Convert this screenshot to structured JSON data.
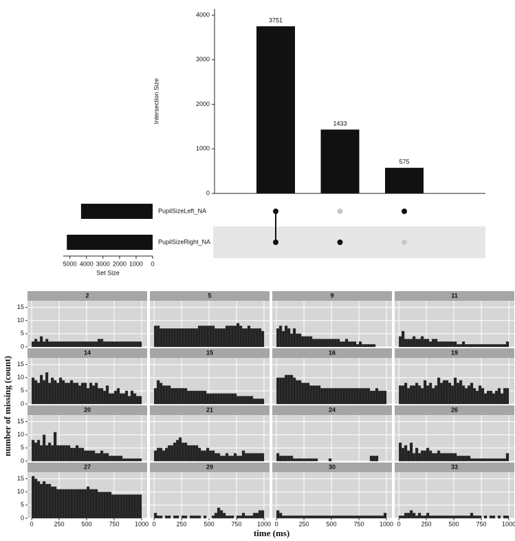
{
  "chart_data": [
    {
      "type": "upset",
      "ylabel": "Intersection Size",
      "values": [
        3751,
        1433,
        575
      ],
      "color": "#111111",
      "ylim": [
        0,
        4140
      ],
      "yticks": [
        0,
        1000,
        2000,
        3000,
        4000
      ],
      "sets": [
        "PupilSizeLeft_NA",
        "PupilSizeRight_NA"
      ],
      "set_sizes": [
        4326,
        5184
      ],
      "set_xlabel": "Set Size",
      "set_xlim": [
        5400,
        0
      ],
      "set_xticks": [
        5000,
        4000,
        3000,
        2000,
        1000,
        0
      ],
      "membership": [
        [
          true,
          true
        ],
        [
          false,
          true
        ],
        [
          true,
          false
        ]
      ]
    },
    {
      "type": "facet_histogram",
      "xlabel": "time (ms)",
      "ylabel": "number of missing (count)",
      "color": "#222222",
      "xlim": [
        -38,
        1050
      ],
      "xticks": [
        0,
        250,
        500,
        750,
        1000
      ],
      "ylim": [
        0,
        17.5
      ],
      "yticks": [
        0,
        5,
        10,
        15
      ],
      "grid": true,
      "bins": [
        0,
        25,
        50,
        75,
        100,
        125,
        150,
        175,
        200,
        225,
        250,
        275,
        300,
        325,
        350,
        375,
        400,
        425,
        450,
        475,
        500,
        525,
        550,
        575,
        600,
        625,
        650,
        675,
        700,
        725,
        750,
        775,
        800,
        825,
        850,
        875,
        900,
        925,
        950,
        975,
        1000
      ],
      "panels": [
        {
          "name": "2",
          "values": [
            2,
            3,
            2,
            4,
            2,
            3,
            2,
            2,
            2,
            2,
            2,
            2,
            2,
            2,
            2,
            2,
            2,
            2,
            2,
            2,
            2,
            2,
            2,
            2,
            3,
            3,
            2,
            2,
            2,
            2,
            2,
            2,
            2,
            2,
            2,
            2,
            2,
            2,
            2,
            2
          ]
        },
        {
          "name": "5",
          "values": [
            8,
            8,
            7,
            7,
            7,
            7,
            7,
            7,
            7,
            7,
            7,
            7,
            7,
            7,
            7,
            7,
            8,
            8,
            8,
            8,
            8,
            8,
            7,
            7,
            7,
            7,
            8,
            8,
            8,
            8,
            9,
            8,
            7,
            7,
            8,
            7,
            7,
            7,
            7,
            6
          ]
        },
        {
          "name": "9",
          "values": [
            7,
            8,
            6,
            8,
            7,
            5,
            7,
            5,
            5,
            4,
            4,
            4,
            4,
            3,
            3,
            3,
            3,
            3,
            3,
            3,
            3,
            3,
            3,
            2,
            2,
            3,
            2,
            2,
            2,
            1,
            2,
            1,
            1,
            1,
            1,
            1,
            0,
            0,
            0,
            0
          ]
        },
        {
          "name": "11",
          "values": [
            4,
            6,
            3,
            3,
            3,
            4,
            3,
            3,
            4,
            3,
            3,
            2,
            3,
            3,
            2,
            2,
            2,
            2,
            2,
            2,
            2,
            1,
            1,
            2,
            1,
            1,
            1,
            1,
            1,
            1,
            1,
            1,
            1,
            1,
            1,
            1,
            1,
            1,
            1,
            2
          ]
        },
        {
          "name": "14",
          "values": [
            10,
            9,
            8,
            11,
            9,
            12,
            8,
            10,
            9,
            8,
            10,
            9,
            8,
            8,
            9,
            8,
            8,
            7,
            8,
            8,
            6,
            8,
            7,
            8,
            6,
            6,
            5,
            7,
            4,
            4,
            5,
            6,
            4,
            4,
            5,
            3,
            5,
            4,
            3,
            3
          ]
        },
        {
          "name": "15",
          "values": [
            6,
            9,
            8,
            7,
            7,
            7,
            6,
            6,
            6,
            6,
            6,
            6,
            5,
            5,
            5,
            5,
            5,
            5,
            5,
            4,
            4,
            4,
            4,
            4,
            4,
            4,
            4,
            4,
            4,
            4,
            3,
            3,
            3,
            3,
            3,
            3,
            2,
            2,
            2,
            2
          ]
        },
        {
          "name": "16",
          "values": [
            10,
            10,
            10,
            11,
            11,
            11,
            10,
            9,
            9,
            8,
            8,
            8,
            7,
            7,
            7,
            7,
            6,
            6,
            6,
            6,
            6,
            6,
            6,
            6,
            6,
            6,
            6,
            6,
            6,
            6,
            6,
            6,
            6,
            6,
            5,
            5,
            6,
            5,
            5,
            5
          ]
        },
        {
          "name": "19",
          "values": [
            7,
            7,
            8,
            6,
            7,
            7,
            8,
            7,
            6,
            9,
            7,
            8,
            6,
            7,
            10,
            8,
            9,
            9,
            8,
            7,
            10,
            8,
            9,
            7,
            6,
            7,
            8,
            6,
            5,
            7,
            6,
            4,
            5,
            5,
            4,
            5,
            6,
            4,
            6,
            6
          ]
        },
        {
          "name": "20",
          "values": [
            8,
            7,
            8,
            6,
            10,
            6,
            7,
            6,
            11,
            6,
            6,
            6,
            6,
            6,
            5,
            5,
            6,
            5,
            5,
            4,
            4,
            4,
            4,
            3,
            3,
            4,
            3,
            3,
            2,
            2,
            2,
            2,
            2,
            1,
            1,
            1,
            1,
            1,
            1,
            1
          ]
        },
        {
          "name": "21",
          "values": [
            4,
            5,
            5,
            4,
            5,
            6,
            6,
            7,
            8,
            9,
            7,
            7,
            6,
            6,
            6,
            6,
            5,
            4,
            4,
            5,
            4,
            4,
            3,
            3,
            2,
            2,
            3,
            2,
            2,
            3,
            2,
            2,
            4,
            3,
            3,
            3,
            3,
            3,
            3,
            3
          ]
        },
        {
          "name": "24",
          "values": [
            3,
            2,
            2,
            2,
            2,
            2,
            1,
            1,
            1,
            1,
            1,
            1,
            1,
            1,
            1,
            0,
            0,
            0,
            0,
            1,
            0,
            0,
            0,
            0,
            0,
            0,
            0,
            0,
            0,
            0,
            0,
            0,
            0,
            0,
            2,
            2,
            2,
            0,
            0,
            0
          ]
        },
        {
          "name": "26",
          "values": [
            7,
            5,
            6,
            4,
            7,
            3,
            5,
            3,
            4,
            4,
            5,
            4,
            3,
            3,
            4,
            3,
            3,
            3,
            3,
            3,
            3,
            2,
            2,
            2,
            2,
            2,
            1,
            1,
            1,
            1,
            1,
            1,
            1,
            1,
            1,
            1,
            1,
            1,
            1,
            3
          ]
        },
        {
          "name": "27",
          "values": [
            16,
            15,
            14,
            13,
            14,
            13,
            13,
            12,
            12,
            11,
            11,
            11,
            11,
            11,
            11,
            11,
            11,
            11,
            11,
            11,
            12,
            11,
            11,
            11,
            10,
            10,
            10,
            10,
            10,
            9,
            9,
            9,
            9,
            9,
            9,
            9,
            9,
            9,
            9,
            9
          ]
        },
        {
          "name": "29",
          "values": [
            2,
            1,
            1,
            0,
            1,
            1,
            0,
            1,
            1,
            0,
            1,
            1,
            0,
            1,
            1,
            1,
            1,
            0,
            1,
            0,
            0,
            1,
            2,
            4,
            3,
            2,
            1,
            1,
            1,
            0,
            1,
            1,
            2,
            1,
            1,
            1,
            2,
            2,
            3,
            3
          ]
        },
        {
          "name": "30",
          "values": [
            3,
            2,
            1,
            1,
            1,
            1,
            1,
            1,
            1,
            1,
            1,
            1,
            1,
            1,
            1,
            1,
            1,
            1,
            1,
            1,
            1,
            1,
            1,
            1,
            1,
            1,
            1,
            1,
            1,
            1,
            1,
            1,
            1,
            1,
            1,
            1,
            1,
            1,
            1,
            2
          ]
        },
        {
          "name": "33",
          "values": [
            1,
            1,
            2,
            2,
            3,
            2,
            1,
            2,
            1,
            1,
            2,
            1,
            1,
            1,
            1,
            1,
            1,
            1,
            1,
            1,
            1,
            1,
            1,
            1,
            1,
            1,
            2,
            1,
            1,
            1,
            0,
            1,
            0,
            1,
            1,
            0,
            1,
            0,
            1,
            1
          ]
        }
      ]
    }
  ]
}
